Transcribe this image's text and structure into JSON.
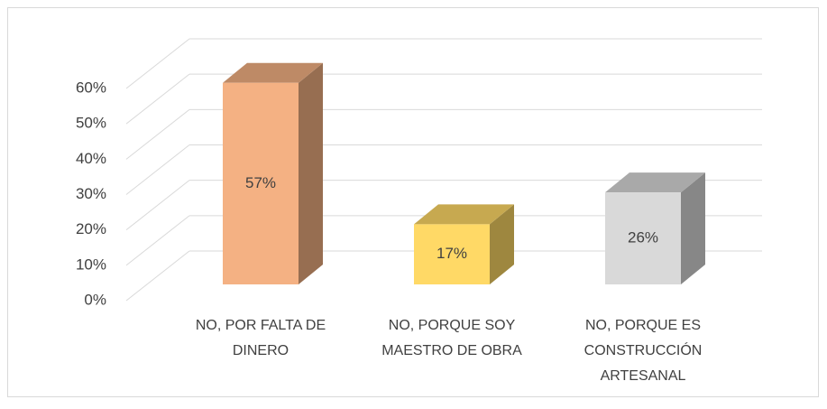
{
  "chart_data": {
    "type": "bar3d",
    "categories": [
      "NO, POR FALTA DE DINERO",
      "NO, PORQUE SOY MAESTRO DE OBRA",
      "NO, PORQUE ES CONSTRUCCIÓN ARTESANAL"
    ],
    "values": [
      57,
      17,
      26
    ],
    "value_labels": [
      "57%",
      "17%",
      "26%"
    ],
    "colors": [
      "#f4b183",
      "#ffd966",
      "#d9d9d9"
    ],
    "ylim": [
      0,
      60
    ],
    "yticks": [
      {
        "value": 0,
        "label": "0%"
      },
      {
        "value": 10,
        "label": "10%"
      },
      {
        "value": 20,
        "label": "20%"
      },
      {
        "value": 30,
        "label": "30%"
      },
      {
        "value": 40,
        "label": "40%"
      },
      {
        "value": 50,
        "label": "50%"
      },
      {
        "value": 60,
        "label": "60%"
      }
    ],
    "grid": true
  }
}
